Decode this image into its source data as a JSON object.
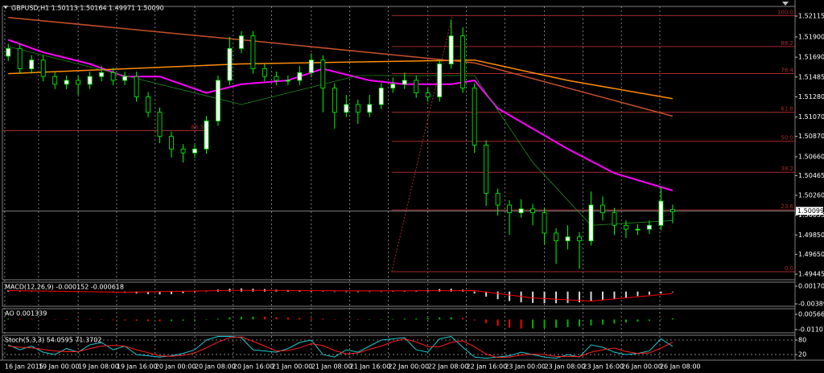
{
  "chart_data": [
    {
      "type": "candlestick",
      "title": "GBPUSD,H1 1.50113 1.50164 1.49971 1.50090",
      "xlim": [
        -0.5,
        67.5
      ],
      "ylim": [
        1.49387,
        1.52215
      ],
      "xticks": [
        {
          "value": -0.3,
          "label": "16 Jan 2015"
        },
        {
          "value": 2.6,
          "label": "19 Jan 00:00"
        },
        {
          "value": 6.0,
          "label": "19 Jan 08:00"
        },
        {
          "value": 9.3,
          "label": "19 Jan 16:00"
        },
        {
          "value": 12.6,
          "label": "20 Jan 00:00"
        },
        {
          "value": 16.0,
          "label": "20 Jan 08:00"
        },
        {
          "value": 19.3,
          "label": "20 Jan 16:00"
        },
        {
          "value": 22.6,
          "label": "21 Jan 00:00"
        },
        {
          "value": 26.0,
          "label": "21 Jan 08:00"
        },
        {
          "value": 29.3,
          "label": "21 Jan 16:00"
        },
        {
          "value": 32.6,
          "label": "22 Jan 00:00"
        },
        {
          "value": 36.0,
          "label": "22 Jan 08:00"
        },
        {
          "value": 39.3,
          "label": "22 Jan 16:00"
        },
        {
          "value": 42.6,
          "label": "23 Jan 00:00"
        },
        {
          "value": 46.0,
          "label": "23 Jan 08:00"
        },
        {
          "value": 49.3,
          "label": "23 Jan 16:00"
        },
        {
          "value": 52.6,
          "label": "26 Jan 00:00"
        },
        {
          "value": 55.9,
          "label": "26 Jan 08:00"
        }
      ],
      "yticks": [
        1.52115,
        {
          "value": 1.519,
          "label": "1.51900"
        },
        {
          "value": 1.5169,
          "label": "1.51690"
        },
        1.51485,
        {
          "value": 1.5128,
          "label": "1.51280"
        },
        {
          "value": 1.5107,
          "label": "1.51070"
        },
        {
          "value": 1.5087,
          "label": "1.50870"
        },
        {
          "value": 1.5066,
          "label": "1.50660"
        },
        1.50465,
        {
          "value": 1.5026,
          "label": "1.50260"
        },
        1.50055,
        {
          "value": 1.4985,
          "label": "1.49850"
        },
        {
          "value": 1.4965,
          "label": "1.49650"
        },
        1.49445
      ],
      "grid": true,
      "price_line": 1.50099,
      "up_color": "#ffffff",
      "down_color": "#000000",
      "wick_color": "#00ff00",
      "candles": [
        [
          1.517,
          1.5183,
          1.5165,
          1.5178
        ],
        [
          1.5178,
          1.5183,
          1.5152,
          1.5157
        ],
        [
          1.5157,
          1.5171,
          1.5152,
          1.5166
        ],
        [
          1.5166,
          1.5171,
          1.5144,
          1.5149
        ],
        [
          1.5149,
          1.5154,
          1.5136,
          1.5141
        ],
        [
          1.5141,
          1.515,
          1.5136,
          1.5145
        ],
        [
          1.5145,
          1.515,
          1.513,
          1.5141
        ],
        [
          1.5141,
          1.5154,
          1.5136,
          1.5149
        ],
        [
          1.5149,
          1.516,
          1.5144,
          1.5153
        ],
        [
          1.5153,
          1.5158,
          1.514,
          1.5145
        ],
        [
          1.5145,
          1.5154,
          1.514,
          1.5149
        ],
        [
          1.5149,
          1.5154,
          1.5123,
          1.5128
        ],
        [
          1.5128,
          1.5133,
          1.5107,
          1.5112
        ],
        [
          1.5112,
          1.5117,
          1.508,
          1.5087
        ],
        [
          1.5087,
          1.5092,
          1.5065,
          1.5074
        ],
        [
          1.5074,
          1.5079,
          1.506,
          1.507
        ],
        [
          1.507,
          1.5079,
          1.5065,
          1.5074
        ],
        [
          1.5074,
          1.5108,
          1.5069,
          1.5103
        ],
        [
          1.5103,
          1.515,
          1.5098,
          1.5145
        ],
        [
          1.5145,
          1.519,
          1.514,
          1.5178
        ],
        [
          1.5178,
          1.5196,
          1.5173,
          1.5191
        ],
        [
          1.5191,
          1.5196,
          1.5152,
          1.5157
        ],
        [
          1.5157,
          1.5162,
          1.5144,
          1.5149
        ],
        [
          1.5149,
          1.5154,
          1.514,
          1.5145
        ],
        [
          1.5145,
          1.515,
          1.514,
          1.5145
        ],
        [
          1.5145,
          1.516,
          1.514,
          1.5153
        ],
        [
          1.5153,
          1.5173,
          1.5148,
          1.5166
        ],
        [
          1.5166,
          1.5171,
          1.5112,
          1.5137
        ],
        [
          1.5137,
          1.5142,
          1.5095,
          1.5112
        ],
        [
          1.5112,
          1.513,
          1.5107,
          1.512
        ],
        [
          1.512,
          1.5125,
          1.51,
          1.5112
        ],
        [
          1.5112,
          1.513,
          1.5107,
          1.512
        ],
        [
          1.512,
          1.5142,
          1.5115,
          1.5137
        ],
        [
          1.5137,
          1.5148,
          1.5132,
          1.5141
        ],
        [
          1.5141,
          1.5153,
          1.5136,
          1.5145
        ],
        [
          1.5145,
          1.515,
          1.5127,
          1.5132
        ],
        [
          1.5132,
          1.5137,
          1.5123,
          1.5128
        ],
        [
          1.5128,
          1.5167,
          1.5123,
          1.5162
        ],
        [
          1.5162,
          1.5208,
          1.5157,
          1.5191
        ],
        [
          1.5191,
          1.52,
          1.5132,
          1.5137
        ],
        [
          1.5137,
          1.5142,
          1.507,
          1.5078
        ],
        [
          1.5078,
          1.5083,
          1.5015,
          1.5028
        ],
        [
          1.5028,
          1.5033,
          1.5005,
          1.5016
        ],
        [
          1.5016,
          1.5021,
          1.4985,
          1.5008
        ],
        [
          1.5008,
          1.5022,
          1.5003,
          1.5012
        ],
        [
          1.5012,
          1.5017,
          1.4995,
          1.5008
        ],
        [
          1.5008,
          1.5013,
          1.4975,
          1.4987
        ],
        [
          1.4987,
          1.4992,
          1.4955,
          1.4979
        ],
        [
          1.4979,
          1.4995,
          1.497,
          1.4983
        ],
        [
          1.4983,
          1.4988,
          1.495,
          1.4979
        ],
        [
          1.4979,
          1.503,
          1.4974,
          1.5016
        ],
        [
          1.5016,
          1.5025,
          1.5,
          1.5008
        ],
        [
          1.5008,
          1.5013,
          1.4985,
          1.4995
        ],
        [
          1.4995,
          1.5,
          1.4982,
          1.4991
        ],
        [
          1.4991,
          1.4996,
          1.4985,
          1.4991
        ],
        [
          1.4991,
          1.5,
          1.4986,
          1.4995
        ],
        [
          1.4995,
          1.5035,
          1.499,
          1.502
        ],
        [
          1.50113,
          1.50164,
          1.49971,
          1.5009
        ]
      ],
      "series": [
        {
          "color": "#ff00ff",
          "x": [
            0,
            3,
            7,
            10,
            13,
            17,
            20,
            24,
            27,
            31,
            34,
            38,
            40,
            42,
            48,
            52,
            57
          ],
          "values": [
            1.5187,
            1.5174,
            1.5162,
            1.5149,
            1.5149,
            1.5132,
            1.5141,
            1.5145,
            1.5157,
            1.5145,
            1.5141,
            1.5141,
            1.5145,
            1.5116,
            1.5074,
            1.5049,
            1.5031
          ]
        },
        {
          "color": "#ff8c00",
          "x": [
            0,
            20,
            40,
            48,
            57
          ],
          "values": [
            1.5152,
            1.5162,
            1.5166,
            1.5145,
            1.5126
          ]
        },
        {
          "color": "#c8502a",
          "x": [
            0,
            20,
            40,
            57
          ],
          "values": [
            1.521,
            1.5187,
            1.5163,
            1.5108
          ]
        },
        {
          "color": "#1e8c1e",
          "x": [
            0,
            10,
            20,
            30,
            40,
            45,
            50,
            57
          ],
          "values": [
            1.518,
            1.515,
            1.512,
            1.515,
            1.515,
            1.506,
            1.4995,
            1.5
          ]
        }
      ],
      "fibs": [
        {
          "color": "#a52a2a",
          "trend_x": [
            32.9,
            38.1
          ],
          "trend_y": [
            1.4947,
            1.5212
          ],
          "levels": [
            {
              "label": "100.0",
              "value": 1.5212
            },
            {
              "label": "88.2",
              "value": 1.518
            },
            {
              "label": "76.4",
              "value": 1.5152
            },
            {
              "label": "61.8",
              "value": 1.5112
            },
            {
              "label": "50.0",
              "value": 1.5082
            },
            {
              "label": "38.2",
              "value": 1.505
            },
            {
              "label": "23.6",
              "value": 1.5011
            },
            {
              "label": "0.0",
              "value": 1.4947
            }
          ]
        },
        {
          "color": "#a52a2a",
          "start": -0.5,
          "end": 16.9,
          "levels": [
            {
              "label": "88.3",
              "value": 1.5093
            }
          ]
        }
      ]
    },
    {
      "type": "macd",
      "title": "MACD(12,26,9) -0.000152 -0.000618",
      "ylim": [
        -0.00465,
        0.00297
      ],
      "yticks": [
        0.001702,
        -0.003892
      ],
      "color": "#d8d8d8",
      "values": [
        0.0004,
        0.0003,
        0.0003,
        0.0002,
        0.0001,
        0.0001,
        0,
        -0.0001,
        -0.0002,
        -0.0003,
        -0.0004,
        -0.0006,
        -0.0008,
        -0.0009,
        -0.0008,
        -0.0005,
        -0.0002,
        0.0002,
        0.0006,
        0.0009,
        0.001,
        0.0009,
        0.0008,
        0.0006,
        0.0005,
        0.0004,
        0.0003,
        0.0001,
        -0.0001,
        -0.0002,
        -0.0002,
        -0.0001,
        0,
        0.0001,
        0.0002,
        0.0003,
        0.0005,
        0.0008,
        0.0009,
        0.0006,
        -0.0006,
        -0.0016,
        -0.0024,
        -0.003,
        -0.0034,
        -0.0036,
        -0.0037,
        -0.0037,
        -0.0036,
        -0.0034,
        -0.0031,
        -0.0027,
        -0.0023,
        -0.0019,
        -0.0014,
        -0.001,
        -0.0006,
        -0.0002
      ],
      "signal": {
        "color": "#ff0000",
        "x": [
          0,
          10,
          20,
          30,
          40,
          45,
          50,
          57
        ],
        "values": [
          0.0003,
          -0.0002,
          0.0004,
          0.0002,
          0.0003,
          -0.002,
          -0.003,
          -0.0006
        ]
      }
    },
    {
      "type": "histogram",
      "title": "AO 0.001339",
      "ylim": [
        -0.0146,
        0.01183
      ],
      "yticks": [
        0.005662,
        -0.011077
      ],
      "up_color": "#00b000",
      "down_color": "#ff0000",
      "values": [
        0.001,
        0.0008,
        0.0006,
        0.0004,
        0.0002,
        0,
        -0.0002,
        -0.0004,
        -0.0006,
        -0.0008,
        -0.001,
        -0.0014,
        -0.0018,
        -0.002,
        -0.0018,
        -0.0014,
        -0.001,
        -0.0004,
        0.001,
        0.0024,
        0.003,
        0.0032,
        0.003,
        0.0026,
        0.0022,
        0.0018,
        0.0014,
        0.001,
        0.0004,
        0,
        -0.0002,
        0,
        0.0002,
        0.0006,
        0.001,
        0.0012,
        0.0016,
        0.0022,
        0.0026,
        0.0018,
        -0.001,
        -0.004,
        -0.007,
        -0.009,
        -0.01,
        -0.0098,
        -0.0094,
        -0.009,
        -0.0084,
        -0.0076,
        -0.0066,
        -0.0056,
        -0.0044,
        -0.0034,
        -0.0024,
        -0.0016,
        -0.0006,
        0.0013
      ]
    },
    {
      "type": "line",
      "title": "Stoch(5,3,3) 54.0595 71.3702",
      "ylim": [
        -3,
        100
      ],
      "yticks": [
        80,
        20
      ],
      "grid": true,
      "series": [
        {
          "color": "#20c8d0",
          "values": [
            60,
            40,
            55,
            30,
            20,
            45,
            30,
            60,
            70,
            40,
            55,
            20,
            15,
            10,
            15,
            25,
            40,
            80,
            95,
            95,
            90,
            40,
            35,
            30,
            45,
            70,
            80,
            20,
            10,
            40,
            30,
            55,
            80,
            85,
            90,
            40,
            30,
            85,
            95,
            50,
            10,
            5,
            10,
            15,
            30,
            20,
            10,
            5,
            20,
            10,
            60,
            50,
            30,
            20,
            25,
            35,
            85,
            54
          ]
        },
        {
          "color": "#ff2020",
          "values": [
            55,
            50,
            48,
            42,
            35,
            32,
            32,
            45,
            55,
            58,
            55,
            40,
            28,
            15,
            13,
            17,
            27,
            48,
            72,
            90,
            93,
            75,
            55,
            35,
            37,
            48,
            65,
            57,
            37,
            23,
            27,
            42,
            55,
            73,
            85,
            72,
            53,
            52,
            70,
            77,
            52,
            22,
            8,
            10,
            18,
            22,
            20,
            12,
            12,
            12,
            30,
            40,
            47,
            33,
            25,
            27,
            47,
            71
          ]
        }
      ]
    }
  ]
}
